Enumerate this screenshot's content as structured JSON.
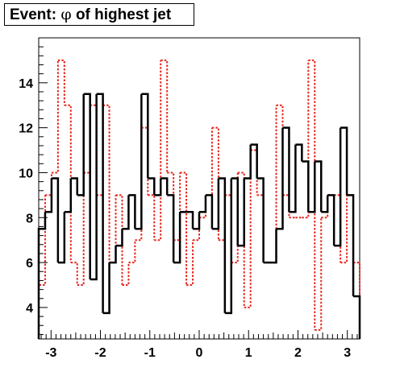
{
  "chart_data": {
    "type": "histogram",
    "title_prefix": "Event: ",
    "title_symbol": "φ",
    "title_suffix": " of highest jet",
    "x_range": [
      -3.25,
      3.25
    ],
    "y_range": [
      2.6,
      16.0
    ],
    "x_ticks": [
      -3,
      -2,
      -1,
      0,
      1,
      2,
      3
    ],
    "y_ticks": [
      4,
      6,
      8,
      10,
      12,
      14
    ],
    "grid": false,
    "legend": "none",
    "series": [
      {
        "style": "solid",
        "color": "#000000",
        "values": [
          7.5,
          8.25,
          9.75,
          6.0,
          8.25,
          9.75,
          9.0,
          13.5,
          5.25,
          13.5,
          3.75,
          6.0,
          6.75,
          7.5,
          9.0,
          7.5,
          13.5,
          9.75,
          9.0,
          9.75,
          9.0,
          6.0,
          8.25,
          8.25,
          7.5,
          8.25,
          9.0,
          7.5,
          9.75,
          3.75,
          9.75,
          6.75,
          9.75,
          11.25,
          9.75,
          6.0,
          6.0,
          7.5,
          12.0,
          8.25,
          11.25,
          10.5,
          8.25,
          10.5,
          8.25,
          9.0,
          6.75,
          12.0,
          9.0,
          4.5
        ]
      },
      {
        "style": "dotted",
        "color": "#e8251c",
        "values": [
          5.0,
          9.0,
          10.0,
          15.0,
          13.0,
          6.0,
          5.0,
          10.0,
          13.0,
          9.0,
          13.0,
          6.0,
          9.0,
          5.0,
          6.0,
          7.0,
          12.0,
          9.0,
          7.0,
          15.0,
          10.0,
          7.0,
          10.0,
          5.0,
          7.0,
          8.0,
          9.0,
          12.0,
          7.0,
          9.0,
          6.0,
          10.0,
          4.0,
          11.0,
          9.0,
          6.0,
          6.0,
          13.0,
          9.0,
          8.0,
          8.0,
          8.0,
          15.0,
          3.0,
          8.0,
          9.0,
          9.0,
          6.0,
          9.0,
          6.0
        ]
      }
    ]
  }
}
